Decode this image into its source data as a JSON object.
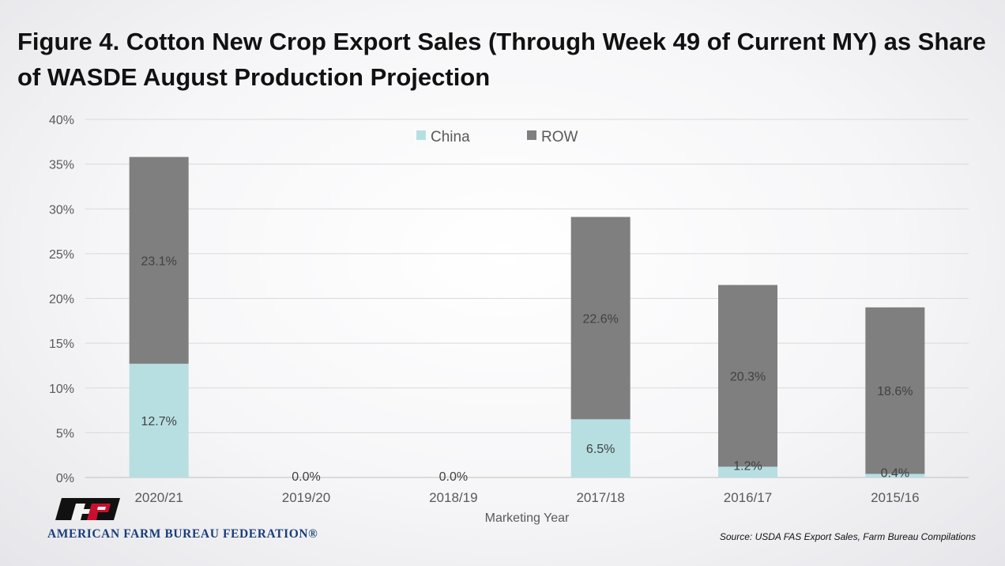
{
  "chart_data": {
    "type": "bar",
    "stacked": true,
    "title": "Figure 4. Cotton New Crop Export Sales (Through Week 49 of Current MY) as Share of WASDE August Production Projection",
    "xlabel": "Marketing Year",
    "ylabel": "",
    "categories": [
      "2020/21",
      "2019/20",
      "2018/19",
      "2017/18",
      "2016/17",
      "2015/16"
    ],
    "series": [
      {
        "name": "China",
        "color": "#b7dfe2",
        "values": [
          12.7,
          0.0,
          0.0,
          6.5,
          1.2,
          0.4
        ],
        "labels": [
          "12.7%",
          "0.0%",
          "0.0%",
          "6.5%",
          "1.2%",
          "0.4%"
        ]
      },
      {
        "name": "ROW",
        "color": "#7f7f7f",
        "values": [
          23.1,
          0.0,
          0.0,
          22.6,
          20.3,
          18.6
        ],
        "labels": [
          "23.1%",
          "",
          "",
          "22.6%",
          "20.3%",
          "18.6%"
        ]
      }
    ],
    "yticks": [
      "0%",
      "5%",
      "10%",
      "15%",
      "20%",
      "25%",
      "30%",
      "35%",
      "40%"
    ],
    "ytick_values": [
      0,
      5,
      10,
      15,
      20,
      25,
      30,
      35,
      40
    ],
    "ylim": [
      0,
      40
    ],
    "grid": true,
    "legend_position": "top-center"
  },
  "footer": {
    "logo_text": "AMERICAN FARM BUREAU FEDERATION®",
    "source": "Source: USDA FAS Export Sales, Farm Bureau Compilations"
  }
}
